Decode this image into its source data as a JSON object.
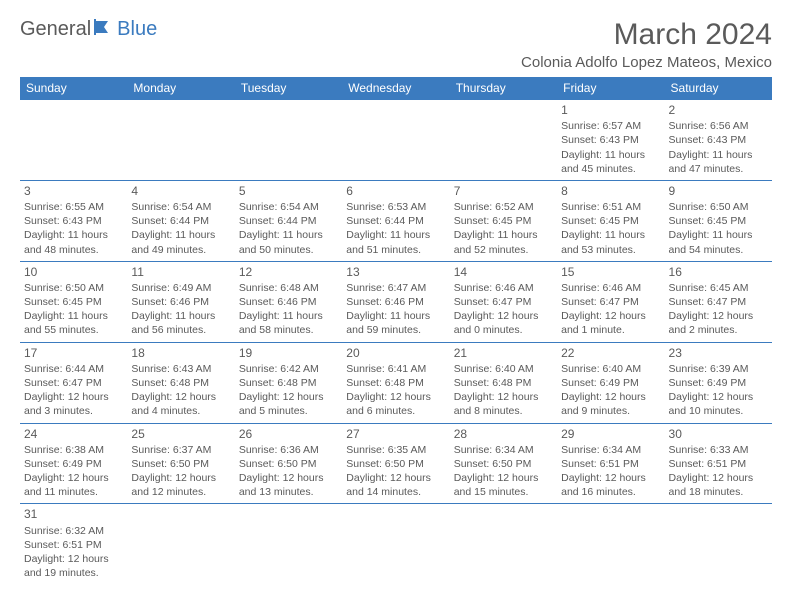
{
  "logo": {
    "text_general": "General",
    "text_blue": "Blue"
  },
  "title": "March 2024",
  "location": "Colonia Adolfo Lopez Mateos, Mexico",
  "colors": {
    "header_bg": "#3b7bbf",
    "header_text": "#ffffff",
    "border": "#3b7bbf",
    "body_text": "#5a5a5a",
    "background": "#ffffff"
  },
  "days_of_week": [
    "Sunday",
    "Monday",
    "Tuesday",
    "Wednesday",
    "Thursday",
    "Friday",
    "Saturday"
  ],
  "weeks": [
    [
      null,
      null,
      null,
      null,
      null,
      {
        "n": "1",
        "sunrise": "6:57 AM",
        "sunset": "6:43 PM",
        "daylight": "11 hours and 45 minutes."
      },
      {
        "n": "2",
        "sunrise": "6:56 AM",
        "sunset": "6:43 PM",
        "daylight": "11 hours and 47 minutes."
      }
    ],
    [
      {
        "n": "3",
        "sunrise": "6:55 AM",
        "sunset": "6:43 PM",
        "daylight": "11 hours and 48 minutes."
      },
      {
        "n": "4",
        "sunrise": "6:54 AM",
        "sunset": "6:44 PM",
        "daylight": "11 hours and 49 minutes."
      },
      {
        "n": "5",
        "sunrise": "6:54 AM",
        "sunset": "6:44 PM",
        "daylight": "11 hours and 50 minutes."
      },
      {
        "n": "6",
        "sunrise": "6:53 AM",
        "sunset": "6:44 PM",
        "daylight": "11 hours and 51 minutes."
      },
      {
        "n": "7",
        "sunrise": "6:52 AM",
        "sunset": "6:45 PM",
        "daylight": "11 hours and 52 minutes."
      },
      {
        "n": "8",
        "sunrise": "6:51 AM",
        "sunset": "6:45 PM",
        "daylight": "11 hours and 53 minutes."
      },
      {
        "n": "9",
        "sunrise": "6:50 AM",
        "sunset": "6:45 PM",
        "daylight": "11 hours and 54 minutes."
      }
    ],
    [
      {
        "n": "10",
        "sunrise": "6:50 AM",
        "sunset": "6:45 PM",
        "daylight": "11 hours and 55 minutes."
      },
      {
        "n": "11",
        "sunrise": "6:49 AM",
        "sunset": "6:46 PM",
        "daylight": "11 hours and 56 minutes."
      },
      {
        "n": "12",
        "sunrise": "6:48 AM",
        "sunset": "6:46 PM",
        "daylight": "11 hours and 58 minutes."
      },
      {
        "n": "13",
        "sunrise": "6:47 AM",
        "sunset": "6:46 PM",
        "daylight": "11 hours and 59 minutes."
      },
      {
        "n": "14",
        "sunrise": "6:46 AM",
        "sunset": "6:47 PM",
        "daylight": "12 hours and 0 minutes."
      },
      {
        "n": "15",
        "sunrise": "6:46 AM",
        "sunset": "6:47 PM",
        "daylight": "12 hours and 1 minute."
      },
      {
        "n": "16",
        "sunrise": "6:45 AM",
        "sunset": "6:47 PM",
        "daylight": "12 hours and 2 minutes."
      }
    ],
    [
      {
        "n": "17",
        "sunrise": "6:44 AM",
        "sunset": "6:47 PM",
        "daylight": "12 hours and 3 minutes."
      },
      {
        "n": "18",
        "sunrise": "6:43 AM",
        "sunset": "6:48 PM",
        "daylight": "12 hours and 4 minutes."
      },
      {
        "n": "19",
        "sunrise": "6:42 AM",
        "sunset": "6:48 PM",
        "daylight": "12 hours and 5 minutes."
      },
      {
        "n": "20",
        "sunrise": "6:41 AM",
        "sunset": "6:48 PM",
        "daylight": "12 hours and 6 minutes."
      },
      {
        "n": "21",
        "sunrise": "6:40 AM",
        "sunset": "6:48 PM",
        "daylight": "12 hours and 8 minutes."
      },
      {
        "n": "22",
        "sunrise": "6:40 AM",
        "sunset": "6:49 PM",
        "daylight": "12 hours and 9 minutes."
      },
      {
        "n": "23",
        "sunrise": "6:39 AM",
        "sunset": "6:49 PM",
        "daylight": "12 hours and 10 minutes."
      }
    ],
    [
      {
        "n": "24",
        "sunrise": "6:38 AM",
        "sunset": "6:49 PM",
        "daylight": "12 hours and 11 minutes."
      },
      {
        "n": "25",
        "sunrise": "6:37 AM",
        "sunset": "6:50 PM",
        "daylight": "12 hours and 12 minutes."
      },
      {
        "n": "26",
        "sunrise": "6:36 AM",
        "sunset": "6:50 PM",
        "daylight": "12 hours and 13 minutes."
      },
      {
        "n": "27",
        "sunrise": "6:35 AM",
        "sunset": "6:50 PM",
        "daylight": "12 hours and 14 minutes."
      },
      {
        "n": "28",
        "sunrise": "6:34 AM",
        "sunset": "6:50 PM",
        "daylight": "12 hours and 15 minutes."
      },
      {
        "n": "29",
        "sunrise": "6:34 AM",
        "sunset": "6:51 PM",
        "daylight": "12 hours and 16 minutes."
      },
      {
        "n": "30",
        "sunrise": "6:33 AM",
        "sunset": "6:51 PM",
        "daylight": "12 hours and 18 minutes."
      }
    ],
    [
      {
        "n": "31",
        "sunrise": "6:32 AM",
        "sunset": "6:51 PM",
        "daylight": "12 hours and 19 minutes."
      },
      null,
      null,
      null,
      null,
      null,
      null
    ]
  ],
  "labels": {
    "sunrise": "Sunrise:",
    "sunset": "Sunset:",
    "daylight": "Daylight:"
  }
}
